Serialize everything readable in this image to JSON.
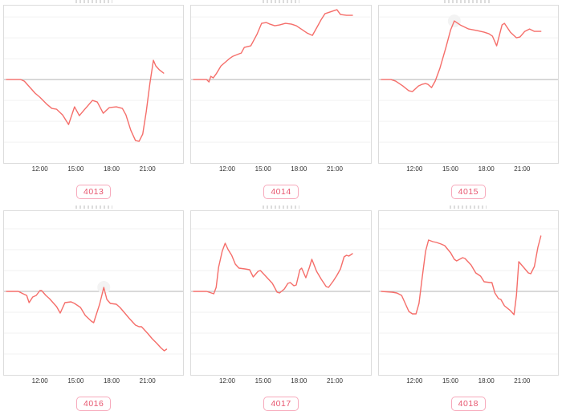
{
  "grid": {
    "rows": 2,
    "cols": 3
  },
  "x_ticks": [
    "12:00",
    "15:00",
    "18:00",
    "21:00"
  ],
  "colors": {
    "background": "#ffffff",
    "line": "#f56e6a",
    "zero_line": "#b3b3b3",
    "grid_line": "#f2f2f2",
    "panel_border": "#dcdcdc",
    "tick_text": "#333333",
    "badge_border": "#f7aabc",
    "badge_text": "#e7566f",
    "halo": "#f3f3f3"
  },
  "chart_data": [
    {
      "type": "line",
      "badge": "4013",
      "x_unit": "hour_of_day",
      "x_range": [
        9,
        24
      ],
      "x_tick_hours": [
        12,
        15,
        18,
        21
      ],
      "x_tick_labels": [
        "12:00",
        "15:00",
        "18:00",
        "21:00"
      ],
      "ylabel": "",
      "y_unit": "relative offset from gray zero baseline (no y-axis labels visible)",
      "grid": "horizontal-only",
      "zero_frac": 0.47,
      "halo_point": null,
      "points": [
        [
          9.2,
          0
        ],
        [
          10.4,
          0
        ],
        [
          10.7,
          -2
        ],
        [
          11.6,
          -17
        ],
        [
          12.0,
          -22
        ],
        [
          12.6,
          -31
        ],
        [
          13.0,
          -36
        ],
        [
          13.4,
          -37
        ],
        [
          13.9,
          -44
        ],
        [
          14.4,
          -56
        ],
        [
          14.9,
          -34
        ],
        [
          15.3,
          -45
        ],
        [
          15.7,
          -38
        ],
        [
          16.4,
          -26
        ],
        [
          16.8,
          -28
        ],
        [
          17.3,
          -42
        ],
        [
          17.8,
          -35
        ],
        [
          18.4,
          -34
        ],
        [
          18.9,
          -36
        ],
        [
          19.2,
          -44
        ],
        [
          19.6,
          -63
        ],
        [
          20.0,
          -76
        ],
        [
          20.3,
          -77
        ],
        [
          20.6,
          -68
        ],
        [
          20.9,
          -40
        ],
        [
          21.2,
          -5
        ],
        [
          21.5,
          24
        ],
        [
          21.7,
          17
        ],
        [
          22.0,
          12
        ],
        [
          22.35,
          8
        ]
      ]
    },
    {
      "type": "line",
      "badge": "4014",
      "x_unit": "hour_of_day",
      "x_range": [
        9,
        24
      ],
      "x_tick_hours": [
        12,
        15,
        18,
        21
      ],
      "x_tick_labels": [
        "12:00",
        "15:00",
        "18:00",
        "21:00"
      ],
      "ylabel": "",
      "y_unit": "relative offset from gray zero baseline (no y-axis labels visible)",
      "grid": "horizontal-only",
      "zero_frac": 0.47,
      "halo_point": null,
      "points": [
        [
          9.2,
          0
        ],
        [
          10.3,
          0
        ],
        [
          10.5,
          -3
        ],
        [
          10.65,
          4
        ],
        [
          10.85,
          2
        ],
        [
          11.1,
          7
        ],
        [
          11.5,
          17
        ],
        [
          12.2,
          26
        ],
        [
          12.5,
          29
        ],
        [
          13.0,
          32
        ],
        [
          13.2,
          33
        ],
        [
          13.45,
          40
        ],
        [
          14.0,
          42
        ],
        [
          14.5,
          56
        ],
        [
          14.9,
          70
        ],
        [
          15.3,
          71
        ],
        [
          15.6,
          69
        ],
        [
          16.0,
          67
        ],
        [
          16.4,
          68
        ],
        [
          16.9,
          70
        ],
        [
          17.4,
          69
        ],
        [
          17.8,
          67
        ],
        [
          18.3,
          62
        ],
        [
          18.7,
          58
        ],
        [
          19.15,
          55
        ],
        [
          19.6,
          67
        ],
        [
          19.9,
          75
        ],
        [
          20.2,
          82
        ],
        [
          20.8,
          85
        ],
        [
          21.2,
          87
        ],
        [
          21.5,
          81
        ],
        [
          22.0,
          80
        ],
        [
          22.5,
          80
        ]
      ]
    },
    {
      "type": "line",
      "badge": "4015",
      "x_unit": "hour_of_day",
      "x_range": [
        9,
        24
      ],
      "x_tick_hours": [
        12,
        15,
        18,
        21
      ],
      "x_tick_labels": [
        "12:00",
        "15:00",
        "18:00",
        "21:00"
      ],
      "ylabel": "",
      "y_unit": "relative offset from gray zero baseline (no y-axis labels visible)",
      "grid": "horizontal-only",
      "zero_frac": 0.47,
      "halo_point": [
        15.3,
        73
      ],
      "points": [
        [
          9.2,
          0
        ],
        [
          10.0,
          0
        ],
        [
          10.4,
          -2
        ],
        [
          11.0,
          -8
        ],
        [
          11.5,
          -14
        ],
        [
          11.8,
          -15
        ],
        [
          12.3,
          -8
        ],
        [
          12.6,
          -6
        ],
        [
          12.9,
          -5
        ],
        [
          13.1,
          -6
        ],
        [
          13.4,
          -10
        ],
        [
          13.7,
          -2
        ],
        [
          14.1,
          14
        ],
        [
          14.6,
          40
        ],
        [
          15.0,
          62
        ],
        [
          15.3,
          73
        ],
        [
          15.8,
          68
        ],
        [
          16.5,
          63
        ],
        [
          17.2,
          61
        ],
        [
          17.8,
          59
        ],
        [
          18.2,
          57
        ],
        [
          18.5,
          54
        ],
        [
          18.85,
          42
        ],
        [
          19.3,
          68
        ],
        [
          19.5,
          70
        ],
        [
          20.0,
          59
        ],
        [
          20.5,
          52
        ],
        [
          20.8,
          53
        ],
        [
          21.2,
          60
        ],
        [
          21.6,
          63
        ],
        [
          22.0,
          60
        ],
        [
          22.55,
          60
        ]
      ]
    },
    {
      "type": "line",
      "badge": "4016",
      "x_unit": "hour_of_day",
      "x_range": [
        9,
        24
      ],
      "x_tick_hours": [
        12,
        15,
        18,
        21
      ],
      "x_tick_labels": [
        "12:00",
        "15:00",
        "18:00",
        "21:00"
      ],
      "ylabel": "",
      "y_unit": "relative offset from gray zero baseline (no y-axis labels visible)",
      "grid": "horizontal-only",
      "zero_frac": 0.49,
      "halo_point": [
        17.35,
        5
      ],
      "points": [
        [
          9.2,
          0
        ],
        [
          10.2,
          0
        ],
        [
          10.6,
          -3
        ],
        [
          10.9,
          -5
        ],
        [
          11.1,
          -14
        ],
        [
          11.4,
          -7
        ],
        [
          11.7,
          -5
        ],
        [
          12.0,
          1
        ],
        [
          12.15,
          1
        ],
        [
          12.5,
          -5
        ],
        [
          12.8,
          -9
        ],
        [
          13.4,
          -19
        ],
        [
          13.7,
          -27
        ],
        [
          14.1,
          -14
        ],
        [
          14.6,
          -13
        ],
        [
          14.9,
          -15
        ],
        [
          15.4,
          -20
        ],
        [
          15.8,
          -30
        ],
        [
          16.3,
          -37
        ],
        [
          16.5,
          -39
        ],
        [
          17.0,
          -16
        ],
        [
          17.35,
          5
        ],
        [
          17.6,
          -10
        ],
        [
          17.9,
          -15
        ],
        [
          18.4,
          -16
        ],
        [
          18.7,
          -20
        ],
        [
          19.1,
          -27
        ],
        [
          19.5,
          -34
        ],
        [
          20.0,
          -42
        ],
        [
          20.3,
          -44
        ],
        [
          20.5,
          -44
        ],
        [
          21.0,
          -52
        ],
        [
          21.4,
          -59
        ],
        [
          21.8,
          -65
        ],
        [
          22.1,
          -70
        ],
        [
          22.4,
          -74
        ],
        [
          22.6,
          -72
        ]
      ]
    },
    {
      "type": "line",
      "badge": "4017",
      "x_unit": "hour_of_day",
      "x_range": [
        9,
        24
      ],
      "x_tick_hours": [
        12,
        15,
        18,
        21
      ],
      "x_tick_labels": [
        "12:00",
        "15:00",
        "18:00",
        "21:00"
      ],
      "ylabel": "",
      "y_unit": "relative offset from gray zero baseline (no y-axis labels visible)",
      "grid": "horizontal-only",
      "zero_frac": 0.49,
      "halo_point": null,
      "points": [
        [
          9.2,
          0
        ],
        [
          10.3,
          0
        ],
        [
          10.7,
          -2
        ],
        [
          10.9,
          -3
        ],
        [
          11.1,
          5
        ],
        [
          11.3,
          30
        ],
        [
          11.6,
          50
        ],
        [
          11.85,
          60
        ],
        [
          12.1,
          52
        ],
        [
          12.4,
          45
        ],
        [
          12.7,
          34
        ],
        [
          13.0,
          29
        ],
        [
          13.5,
          28
        ],
        [
          13.9,
          27
        ],
        [
          14.2,
          18
        ],
        [
          14.6,
          25
        ],
        [
          14.8,
          26
        ],
        [
          15.3,
          18
        ],
        [
          15.8,
          10
        ],
        [
          16.2,
          -1
        ],
        [
          16.4,
          -2
        ],
        [
          16.8,
          3
        ],
        [
          17.1,
          10
        ],
        [
          17.3,
          11
        ],
        [
          17.6,
          7
        ],
        [
          17.8,
          8
        ],
        [
          18.1,
          27
        ],
        [
          18.25,
          29
        ],
        [
          18.6,
          17
        ],
        [
          18.9,
          30
        ],
        [
          19.1,
          40
        ],
        [
          19.5,
          25
        ],
        [
          19.9,
          15
        ],
        [
          20.3,
          6
        ],
        [
          20.5,
          5
        ],
        [
          20.9,
          13
        ],
        [
          21.2,
          20
        ],
        [
          21.5,
          28
        ],
        [
          21.8,
          43
        ],
        [
          22.0,
          45
        ],
        [
          22.2,
          44
        ],
        [
          22.5,
          47
        ]
      ]
    },
    {
      "type": "line",
      "badge": "4018",
      "x_unit": "hour_of_day",
      "x_range": [
        9,
        24
      ],
      "x_tick_hours": [
        12,
        15,
        18,
        21
      ],
      "x_tick_labels": [
        "12:00",
        "15:00",
        "18:00",
        "21:00"
      ],
      "ylabel": "",
      "y_unit": "relative offset from gray zero baseline (no y-axis labels visible)",
      "grid": "horizontal-only",
      "zero_frac": 0.49,
      "halo_point": null,
      "points": [
        [
          9.2,
          0
        ],
        [
          10.1,
          -1
        ],
        [
          10.5,
          -2
        ],
        [
          10.9,
          -5
        ],
        [
          11.2,
          -15
        ],
        [
          11.5,
          -25
        ],
        [
          11.8,
          -28
        ],
        [
          12.1,
          -28
        ],
        [
          12.35,
          -15
        ],
        [
          12.6,
          15
        ],
        [
          12.9,
          50
        ],
        [
          13.15,
          64
        ],
        [
          13.5,
          62
        ],
        [
          13.8,
          61
        ],
        [
          14.2,
          59
        ],
        [
          14.5,
          57
        ],
        [
          15.0,
          48
        ],
        [
          15.3,
          40
        ],
        [
          15.5,
          38
        ],
        [
          16.0,
          42
        ],
        [
          16.2,
          41
        ],
        [
          16.7,
          33
        ],
        [
          17.1,
          23
        ],
        [
          17.5,
          19
        ],
        [
          17.8,
          12
        ],
        [
          18.3,
          11
        ],
        [
          18.45,
          11
        ],
        [
          18.7,
          -2
        ],
        [
          19.0,
          -9
        ],
        [
          19.2,
          -10
        ],
        [
          19.5,
          -18
        ],
        [
          20.0,
          -24
        ],
        [
          20.3,
          -29
        ],
        [
          20.5,
          -5
        ],
        [
          20.7,
          37
        ],
        [
          21.1,
          30
        ],
        [
          21.5,
          23
        ],
        [
          21.7,
          22
        ],
        [
          22.0,
          31
        ],
        [
          22.3,
          55
        ],
        [
          22.55,
          69
        ]
      ]
    }
  ]
}
